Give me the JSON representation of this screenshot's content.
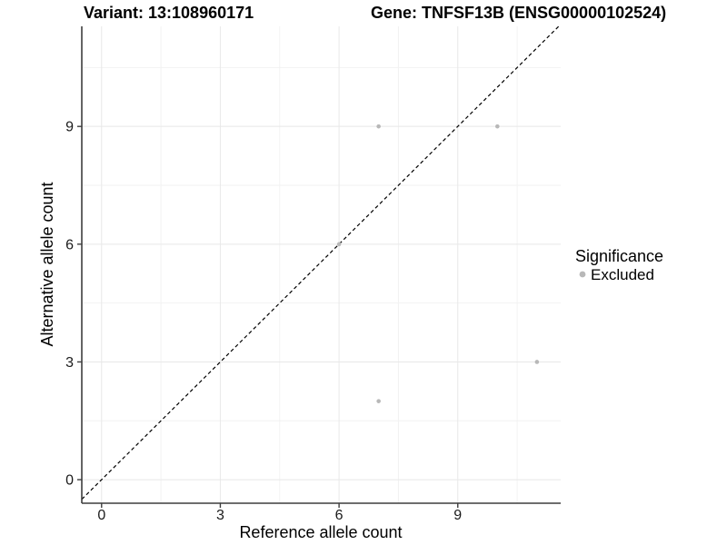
{
  "header": {
    "left_title": "Variant: 13:108960171",
    "right_title": "Gene: TNFSF13B (ENSG00000102524)"
  },
  "chart_data": {
    "type": "scatter",
    "title_left": "Variant: 13:108960171",
    "title_right": "Gene: TNFSF13B (ENSG00000102524)",
    "xlabel": "Reference allele count",
    "ylabel": "Alternative allele count",
    "xlim": [
      -0.5,
      11.6
    ],
    "ylim": [
      -0.6,
      11.55
    ],
    "x_ticks": [
      0,
      3,
      6,
      9
    ],
    "y_ticks": [
      0,
      3,
      6,
      9
    ],
    "x_tick_labels": [
      "0",
      "3",
      "6",
      "9"
    ],
    "y_tick_labels": [
      "0",
      "3",
      "6",
      "9"
    ],
    "x_minor_ticks": [
      1.5,
      4.5,
      7.5,
      10.5
    ],
    "y_minor_ticks": [
      1.5,
      4.5,
      7.5,
      10.5
    ],
    "grid": true,
    "series": [
      {
        "name": "Excluded",
        "color": "#b8b8b8",
        "points": [
          [
            6,
            6
          ],
          [
            7,
            9
          ],
          [
            10,
            9
          ],
          [
            11,
            3
          ],
          [
            7,
            2
          ]
        ]
      }
    ],
    "reference_line": {
      "kind": "identity-y-equals-x",
      "style": "dashed",
      "color": "#000000"
    },
    "legend": {
      "title": "Significance",
      "position": "right",
      "entries": [
        {
          "label": "Excluded",
          "color": "#b8b8b8"
        }
      ]
    }
  },
  "colors": {
    "point": "#b8b8b8",
    "grid_major": "#e8e8e8",
    "grid_minor": "#f2f2f2",
    "axis_line": "#3d3d3d",
    "reference_line": "#000000",
    "background": "#ffffff"
  }
}
